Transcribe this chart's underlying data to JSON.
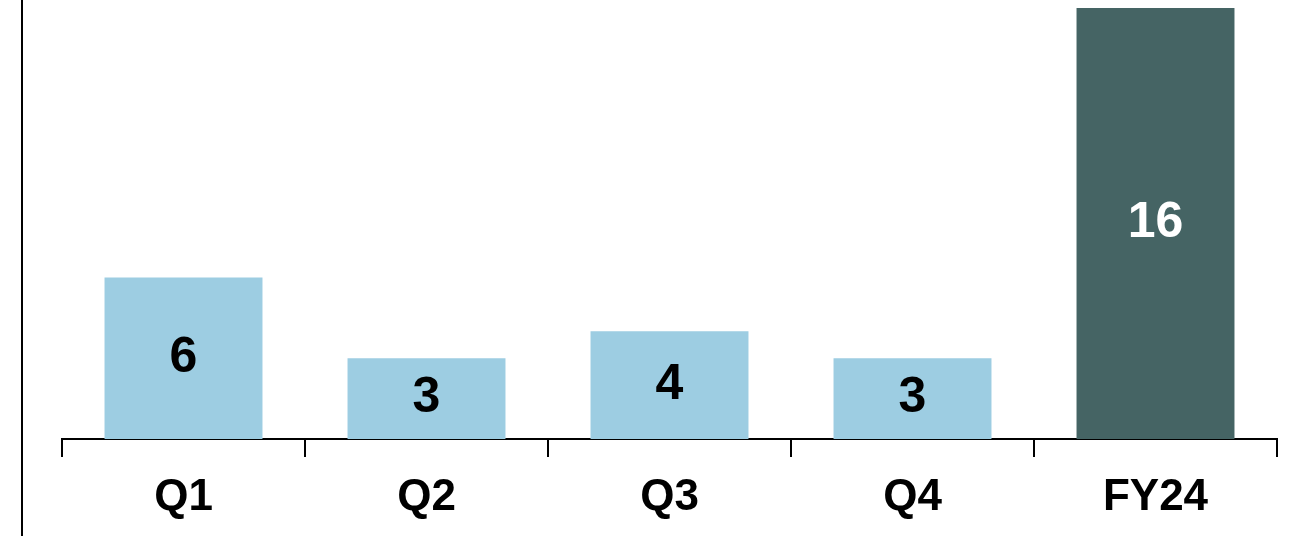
{
  "chart_data": {
    "type": "bar",
    "categories": [
      "Q1",
      "Q2",
      "Q3",
      "Q4",
      "FY24"
    ],
    "values": [
      6,
      3,
      4,
      3,
      16
    ],
    "colors": [
      "#9dcde2",
      "#9dcde2",
      "#9dcde2",
      "#9dcde2",
      "#456464"
    ],
    "ylim": [
      0,
      16
    ],
    "data_labels": true
  }
}
